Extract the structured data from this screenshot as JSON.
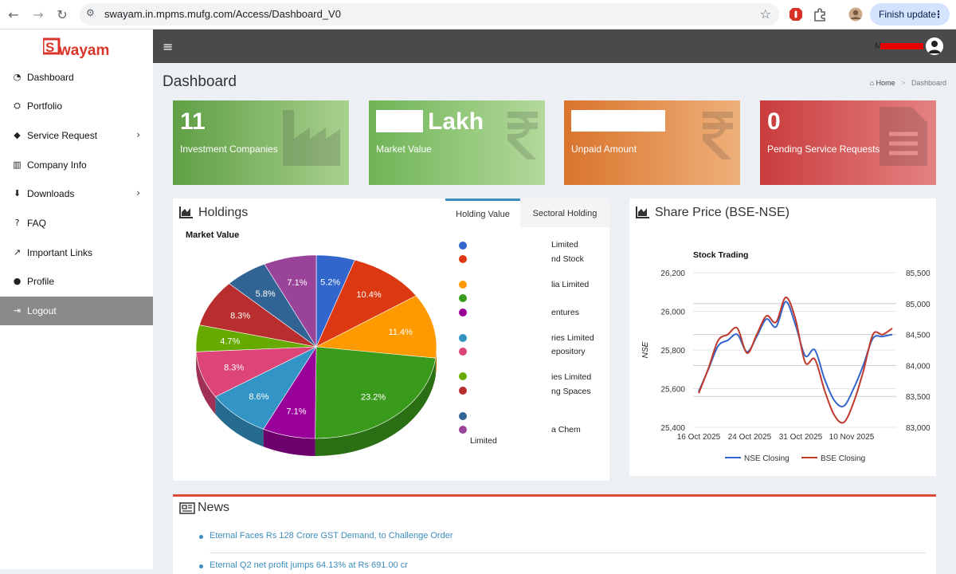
{
  "browser": {
    "url": "swayam.in.mpms.mufg.com/Access/Dashboard_V0",
    "finish_update": "Finish update"
  },
  "brand": {
    "logo_text": "wayam",
    "accent": "#d9352b"
  },
  "sidebar": {
    "items": [
      {
        "label": "Dashboard",
        "icon": "dashboard-icon",
        "glyph": "◔"
      },
      {
        "label": "Portfolio",
        "icon": "cubes-icon",
        "glyph": "⛭"
      },
      {
        "label": "Service Request",
        "icon": "tag-icon",
        "glyph": "◆",
        "has_submenu": true
      },
      {
        "label": "Company Info",
        "icon": "institution-icon",
        "glyph": "▥"
      },
      {
        "label": "Downloads",
        "icon": "download-icon",
        "glyph": "⬇",
        "has_submenu": true
      },
      {
        "label": "FAQ",
        "icon": "question-icon",
        "glyph": "?"
      },
      {
        "label": "Important Links",
        "icon": "external-link-icon",
        "glyph": "↗"
      },
      {
        "label": "Profile",
        "icon": "user-icon",
        "glyph": "●"
      },
      {
        "label": "Logout",
        "icon": "sign-out-icon",
        "glyph": "⇥",
        "active": true
      }
    ]
  },
  "topbar": {
    "username_fragment": "M"
  },
  "page": {
    "title": "Dashboard",
    "breadcrumb": {
      "home": "Home",
      "current": "Dashboard"
    }
  },
  "kpis": [
    {
      "value": "11",
      "caption": "Investment Companies",
      "color": "#6aa84f",
      "icon": "industry-icon"
    },
    {
      "value": "Lakh",
      "caption": "Market Value",
      "color": "#7dbb63",
      "icon": "rupee-icon",
      "redacted": true
    },
    {
      "value": "",
      "caption": "Unpaid Amount",
      "color": "#e0883f",
      "icon": "rupee-icon",
      "redacted": true
    },
    {
      "value": "0",
      "caption": "Pending Service Requests",
      "color": "#d04a4a",
      "icon": "file-text-icon"
    }
  ],
  "holdings": {
    "title": "Holdings",
    "tabs": [
      "Holding Value",
      "Sectoral Holding"
    ],
    "active_tab": "Holding Value",
    "chart_title": "Market Value",
    "legend_fragments": [
      "Limited",
      "nd Stock",
      "lia Limited",
      "entures",
      "ries Limited",
      "epository",
      "ies Limited",
      "ng Spaces",
      "a Chem",
      "Limited"
    ]
  },
  "share_price": {
    "title": "Share Price (BSE-NSE)"
  },
  "news": {
    "title": "News",
    "items": [
      "Eternal Faces Rs 128 Crore GST Demand, to Challenge Order",
      "Eternal Q2 net profit jumps 64.13% at Rs 691.00 cr"
    ]
  },
  "chart_data": [
    {
      "type": "pie",
      "title": "Market Value",
      "values": [
        5.2,
        10.4,
        11.4,
        23.2,
        7.1,
        8.6,
        8.3,
        4.7,
        8.3,
        5.8,
        7.1
      ],
      "labels": [
        "5.2%",
        "10.4%",
        "11.4%",
        "23.2%",
        "7.1%",
        "8.6%",
        "8.3%",
        "4.7%",
        "8.3%",
        "5.8%",
        "7.1%"
      ],
      "colors": [
        "#3366cc",
        "#dc3912",
        "#ff9900",
        "#3a9a1c",
        "#990099",
        "#3394c6",
        "#dd4477",
        "#66aa00",
        "#b82e2e",
        "#316395",
        "#994499"
      ]
    },
    {
      "type": "line",
      "title": "Stock Trading",
      "ylabel": "NSE",
      "x_ticks": [
        "16 Oct 2025",
        "24 Oct 2025",
        "31 Oct 2025",
        "10 Nov 2025"
      ],
      "y_left_ticks": [
        "26,200",
        "26,000",
        "25,800",
        "25,600",
        "25,400"
      ],
      "y_right_ticks": [
        "85,500",
        "85,000",
        "84,500",
        "84,000",
        "83,500",
        "83,000"
      ],
      "ylim_left": [
        25400,
        26200
      ],
      "ylim_right": [
        83000,
        85500
      ],
      "series": [
        {
          "name": "NSE Closing",
          "axis": "left",
          "color": "#3366cc",
          "values": [
            25585,
            25700,
            25820,
            25850,
            25880,
            25790,
            25870,
            25960,
            25920,
            26050,
            25930,
            25770,
            25800,
            25650,
            25540,
            25510,
            25600,
            25720,
            25860,
            25870,
            25880
          ]
        },
        {
          "name": "BSE Closing",
          "axis": "right",
          "color": "#c0392b",
          "values": [
            83550,
            83950,
            84400,
            84500,
            84600,
            84200,
            84500,
            84800,
            84700,
            85100,
            84750,
            84050,
            84100,
            83600,
            83200,
            83080,
            83400,
            83900,
            84500,
            84500,
            84600
          ]
        }
      ]
    }
  ]
}
